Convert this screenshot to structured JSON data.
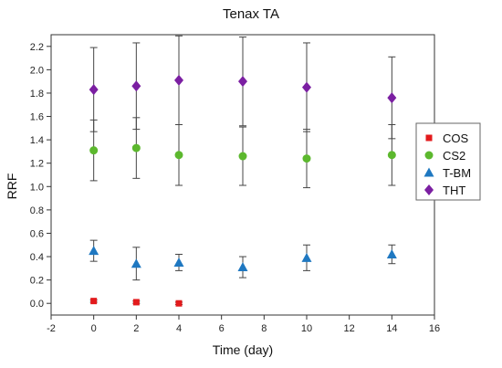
{
  "chart_data": {
    "type": "scatter",
    "title": "Tenax TA",
    "xlabel": "Time (day)",
    "ylabel": "RRF",
    "xlim": [
      -2,
      16
    ],
    "ylim": [
      -0.1,
      2.3
    ],
    "x_ticks": [
      -2,
      0,
      2,
      4,
      6,
      8,
      10,
      12,
      14,
      16
    ],
    "y_ticks": [
      0.0,
      0.2,
      0.4,
      0.6,
      0.8,
      1.0,
      1.2,
      1.4,
      1.6,
      1.8,
      2.0,
      2.2
    ],
    "x_tick_labels": [
      "-2",
      "0",
      "2",
      "4",
      "6",
      "8",
      "10",
      "12",
      "14",
      "16"
    ],
    "y_tick_labels": [
      "0.0",
      "0.2",
      "0.4",
      "0.6",
      "0.8",
      "1.0",
      "1.2",
      "1.4",
      "1.6",
      "1.8",
      "2.0",
      "2.2"
    ],
    "grid": false,
    "legend": "right",
    "series": [
      {
        "name": "COS",
        "marker": "square",
        "color": "#e31a1c",
        "x": [
          0,
          2,
          4
        ],
        "y": [
          0.02,
          0.01,
          0.0
        ],
        "err": [
          0.01,
          0.01,
          0.01
        ]
      },
      {
        "name": "CS2",
        "marker": "circle",
        "color": "#5cb82e",
        "x": [
          0,
          2,
          4,
          7,
          10,
          14
        ],
        "y": [
          1.31,
          1.33,
          1.27,
          1.26,
          1.24,
          1.27
        ],
        "err": [
          0.26,
          0.26,
          0.26,
          0.25,
          0.25,
          0.26
        ]
      },
      {
        "name": "T-BM",
        "marker": "triangle",
        "color": "#1f78c1",
        "x": [
          0,
          2,
          4,
          7,
          10,
          14
        ],
        "y": [
          0.45,
          0.34,
          0.35,
          0.31,
          0.39,
          0.42
        ],
        "err": [
          0.09,
          0.14,
          0.07,
          0.09,
          0.11,
          0.08
        ]
      },
      {
        "name": "THT",
        "marker": "diamond",
        "color": "#7b1fa2",
        "x": [
          0,
          2,
          4,
          7,
          10,
          14
        ],
        "y": [
          1.83,
          1.86,
          1.91,
          1.9,
          1.85,
          1.76
        ],
        "err": [
          0.36,
          0.37,
          0.38,
          0.38,
          0.38,
          0.35
        ]
      }
    ]
  }
}
